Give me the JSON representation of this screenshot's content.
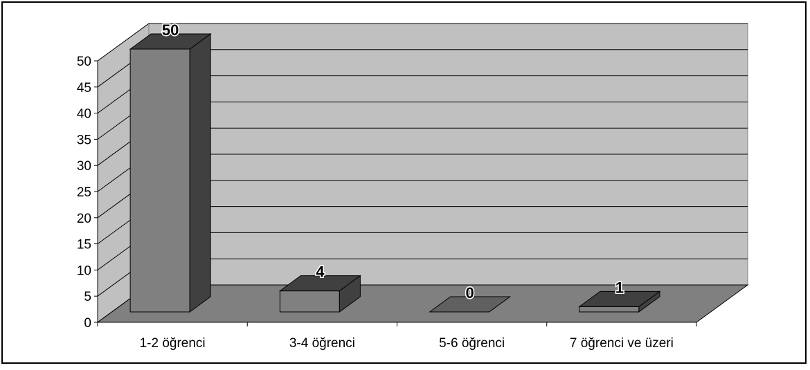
{
  "chart_data": {
    "type": "bar",
    "categories": [
      "1-2 öğrenci",
      "3-4 öğrenci",
      "5-6 öğrenci",
      "7 öğrenci ve üzeri"
    ],
    "values": [
      50,
      4,
      0,
      1
    ],
    "ylim": [
      0,
      50
    ],
    "yticks": [
      0,
      5,
      10,
      15,
      20,
      25,
      30,
      35,
      40,
      45,
      50
    ],
    "grid": true,
    "legend": "none",
    "style": "3d-column"
  },
  "colors": {
    "wall": "#c0c0c0",
    "floor": "#808080",
    "bar_front": "#808080",
    "bar_side": "#404040",
    "bar_top": "#606060",
    "gridline": "#000000",
    "data_label_halo": "#ffffff"
  }
}
